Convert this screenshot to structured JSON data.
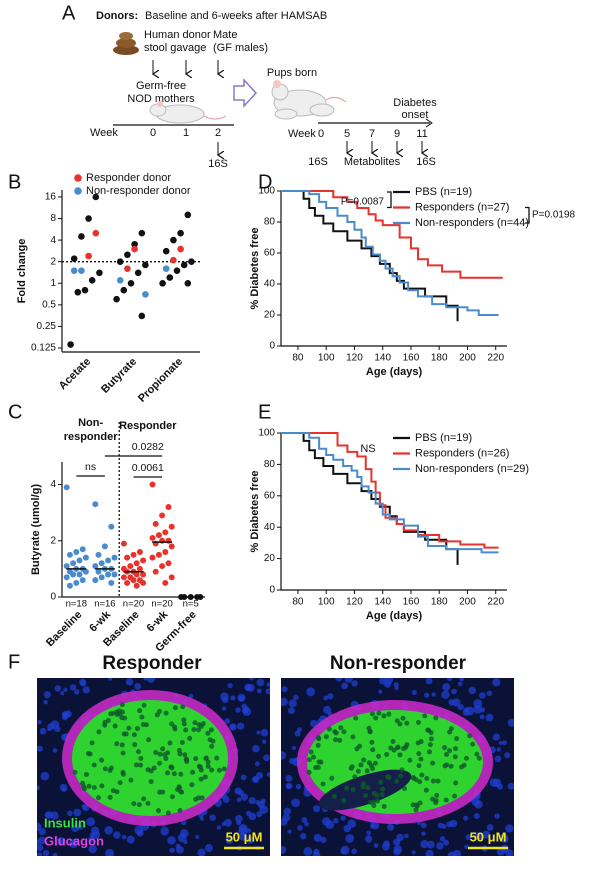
{
  "panel_labels": [
    "A",
    "B",
    "C",
    "D",
    "E",
    "F"
  ],
  "panel_a": {
    "donors_label": "Donors:",
    "donors_text": "Baseline and 6-weeks after HAMSAB",
    "gavage": [
      "Human donor",
      "stool gavage"
    ],
    "mate": [
      "Mate",
      "(GF males)"
    ],
    "mothers": [
      "Germ-free",
      "NOD mothers"
    ],
    "week_label": "Week",
    "mother_weeks": [
      "0",
      "1",
      "2"
    ],
    "mother_sample": "16S",
    "pups": "Pups born",
    "onset": [
      "Diabetes",
      "onset"
    ],
    "pup_weeks": [
      "0",
      "5",
      "7",
      "9",
      "11"
    ],
    "pup_samples": [
      "16S",
      "Metabolites",
      "16S"
    ]
  },
  "chart_data": [
    {
      "type": "strip",
      "log_scale": true,
      "ylabel": "Fold change",
      "categories": [
        "Acetate",
        "Butyrate",
        "Propionate"
      ],
      "ylim": [
        0.11,
        20
      ],
      "yticks": [
        0.125,
        0.25,
        0.5,
        1,
        2,
        4,
        8,
        16
      ],
      "reference_line": 2,
      "series": [
        {
          "color": "#111111",
          "x": [
            "Acetate",
            "Acetate",
            "Acetate",
            "Acetate",
            "Acetate",
            "Acetate",
            "Acetate",
            "Acetate",
            "Acetate",
            "Butyrate",
            "Butyrate",
            "Butyrate",
            "Butyrate",
            "Butyrate",
            "Butyrate",
            "Butyrate",
            "Butyrate",
            "Butyrate",
            "Butyrate",
            "Propionate",
            "Propionate",
            "Propionate",
            "Propionate",
            "Propionate",
            "Propionate",
            "Propionate",
            "Propionate",
            "Propionate",
            "Propionate"
          ],
          "values": [
            16,
            8,
            4.5,
            2.2,
            1.4,
            1.1,
            0.8,
            0.75,
            0.14,
            5,
            3.5,
            2.5,
            2,
            1.8,
            1.4,
            1,
            0.8,
            0.6,
            0.35,
            9,
            5,
            4,
            2.8,
            2,
            1.8,
            1.5,
            1.2,
            1,
            1
          ]
        },
        {
          "name": "Responder donor",
          "color": "#e8322b",
          "x": [
            "Acetate",
            "Acetate",
            "Butyrate",
            "Butyrate",
            "Propionate",
            "Propionate"
          ],
          "values": [
            5,
            2.4,
            3,
            1.6,
            3,
            2.1
          ]
        },
        {
          "name": "Non-responder donor",
          "color": "#4a8ccb",
          "x": [
            "Acetate",
            "Acetate",
            "Butyrate",
            "Butyrate",
            "Propionate"
          ],
          "values": [
            1.5,
            1.5,
            1.1,
            0.7,
            1.6
          ]
        }
      ]
    },
    {
      "type": "dotplot",
      "ylabel": "Butyrate (umol/g)",
      "ylim": [
        0,
        4.8
      ],
      "yticks": [
        0,
        2,
        4
      ],
      "group_labels": [
        [
          "Non-",
          "responder"
        ],
        [
          "Responder"
        ]
      ],
      "annotations": [
        "ns",
        "0.0282",
        "0.0061"
      ],
      "groups": [
        {
          "label": "Baseline",
          "n_label": "n=18",
          "color": "#4a8ccb",
          "median": 1.0,
          "values": [
            3.9,
            1.7,
            1.6,
            1.5,
            1.4,
            1.3,
            1.2,
            1.1,
            1.0,
            1.0,
            0.9,
            0.9,
            0.8,
            0.8,
            0.7,
            0.6,
            0.5,
            0.4
          ]
        },
        {
          "label": "6-wk",
          "n_label": "n=16",
          "color": "#4a8ccb",
          "median": 1.0,
          "values": [
            3.3,
            2.5,
            1.8,
            1.5,
            1.4,
            1.3,
            1.2,
            1.1,
            1.0,
            1.0,
            0.9,
            0.8,
            0.8,
            0.7,
            0.6,
            0.5
          ]
        },
        {
          "label": "Baseline",
          "n_label": "n=20",
          "color": "#e8322b",
          "median": 0.9,
          "values": [
            1.9,
            1.6,
            1.5,
            1.4,
            1.3,
            1.2,
            1.1,
            1.0,
            1.0,
            0.9,
            0.9,
            0.8,
            0.8,
            0.7,
            0.7,
            0.6,
            0.6,
            0.5,
            0.5,
            0.4
          ]
        },
        {
          "label": "6-wk",
          "n_label": "n=20",
          "color": "#e8322b",
          "median": 1.95,
          "values": [
            4.0,
            3.2,
            2.9,
            2.6,
            2.5,
            2.3,
            2.2,
            2.1,
            2.0,
            2.0,
            1.9,
            1.8,
            1.6,
            1.5,
            1.4,
            1.2,
            1.1,
            0.9,
            0.7,
            0.5
          ]
        },
        {
          "label": "Germ-free",
          "n_label": "n=5",
          "color": "#111111",
          "median": 0,
          "values": [
            0,
            0,
            0,
            0,
            0
          ]
        }
      ]
    },
    {
      "type": "step",
      "xlabel": "Age (days)",
      "ylabel": "% Diabetes free",
      "xlim": [
        68,
        228
      ],
      "ylim": [
        0,
        100
      ],
      "xticks": [
        80,
        100,
        120,
        140,
        160,
        180,
        200,
        220
      ],
      "yticks": [
        0,
        20,
        40,
        60,
        80,
        100
      ],
      "annotations": [
        "P=0.0087",
        "P=0.0198"
      ],
      "series": [
        {
          "name": "PBS (n=19)",
          "color": "#111111",
          "x": [
            68,
            84,
            88,
            92,
            98,
            105,
            115,
            125,
            132,
            138,
            145,
            150,
            155,
            170,
            185,
            193
          ],
          "values": [
            100,
            95,
            89,
            84,
            79,
            74,
            68,
            63,
            58,
            53,
            47,
            42,
            37,
            32,
            26,
            16
          ]
        },
        {
          "name": "Responders (n=27)",
          "color": "#e8322b",
          "x": [
            68,
            105,
            115,
            122,
            130,
            135,
            140,
            152,
            160,
            165,
            172,
            182,
            195,
            225
          ],
          "values": [
            100,
            96,
            93,
            89,
            85,
            81,
            78,
            70,
            63,
            56,
            52,
            48,
            44,
            44
          ]
        },
        {
          "name": "Non-responders (n=44)",
          "color": "#4a8ccb",
          "x": [
            68,
            88,
            95,
            100,
            108,
            115,
            120,
            125,
            128,
            133,
            138,
            142,
            147,
            152,
            158,
            165,
            175,
            185,
            200,
            208,
            222
          ],
          "values": [
            100,
            98,
            93,
            89,
            84,
            80,
            75,
            70,
            64,
            59,
            55,
            50,
            45,
            41,
            36,
            32,
            27,
            25,
            23,
            20,
            20
          ]
        }
      ]
    },
    {
      "type": "step",
      "xlabel": "Age (days)",
      "ylabel": "% Diabetes free",
      "xlim": [
        68,
        228
      ],
      "ylim": [
        0,
        100
      ],
      "xticks": [
        80,
        100,
        120,
        140,
        160,
        180,
        200,
        220
      ],
      "yticks": [
        0,
        20,
        40,
        60,
        80,
        100
      ],
      "annotations": [
        "NS"
      ],
      "series": [
        {
          "name": "PBS (n=19)",
          "color": "#111111",
          "x": [
            68,
            84,
            88,
            92,
            98,
            105,
            115,
            125,
            132,
            138,
            145,
            150,
            155,
            170,
            185,
            193
          ],
          "values": [
            100,
            95,
            89,
            84,
            79,
            74,
            68,
            63,
            58,
            53,
            47,
            42,
            37,
            32,
            26,
            16
          ]
        },
        {
          "name": "Responders (n=26)",
          "color": "#e8322b",
          "x": [
            68,
            100,
            108,
            115,
            122,
            128,
            132,
            135,
            138,
            142,
            150,
            155,
            165,
            180,
            195,
            212,
            222
          ],
          "values": [
            100,
            100,
            92,
            88,
            85,
            77,
            69,
            62,
            54,
            46,
            42,
            38,
            35,
            31,
            29,
            27,
            27
          ]
        },
        {
          "name": "Non-responders (n=29)",
          "color": "#4a8ccb",
          "x": [
            68,
            88,
            95,
            100,
            105,
            112,
            118,
            122,
            125,
            130,
            135,
            140,
            145,
            155,
            165,
            172,
            185,
            210,
            222
          ],
          "values": [
            100,
            97,
            90,
            86,
            83,
            79,
            76,
            72,
            66,
            62,
            55,
            48,
            45,
            41,
            34,
            28,
            26,
            24,
            24
          ]
        }
      ]
    }
  ],
  "panel_f": {
    "titles": [
      "Responder",
      "Non-responder"
    ],
    "stains": [
      "Insulin",
      "Glucagon"
    ],
    "scale_bars": [
      "50 μM",
      "50 μM"
    ]
  }
}
